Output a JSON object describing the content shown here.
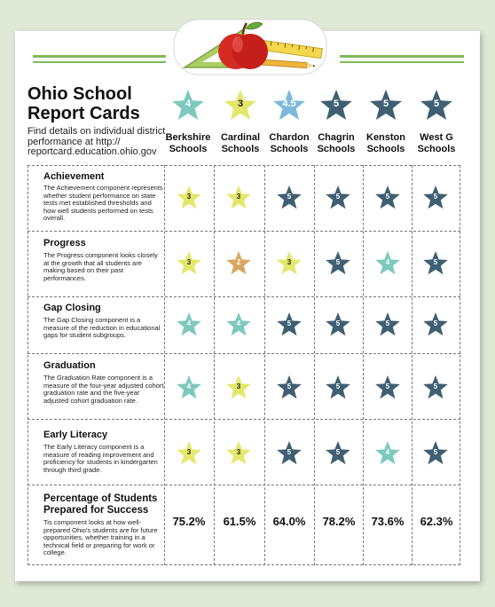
{
  "colors": {
    "yellow": "#e3e86a",
    "orange": "#d9a860",
    "mint": "#7ec9bd",
    "navy": "#3f5f73",
    "lightblue": "#7db9dc",
    "border": "#777777",
    "background": "#dfe9d6",
    "green_stripe": "#7dbb5a"
  },
  "icons": {
    "logo": "apple-ruler-triangle-logo",
    "star": "star-icon"
  },
  "header": {
    "title_line1": "Ohio School",
    "title_line2": "Report Cards",
    "subtitle": "Find details on individual district performance at http:// reportcard.education.ohio.gov"
  },
  "schools": [
    {
      "line1": "Berkshire",
      "line2": "Schools",
      "overall": "4",
      "color": "mint"
    },
    {
      "line1": "Cardinal",
      "line2": "Schools",
      "overall": "3",
      "color": "yellow"
    },
    {
      "line1": "Chardon",
      "line2": "Schools",
      "overall": "4.5",
      "color": "lightblue"
    },
    {
      "line1": "Chagrin",
      "line2": "Schools",
      "overall": "5",
      "color": "navy"
    },
    {
      "line1": "Kenston",
      "line2": "Schools",
      "overall": "5",
      "color": "navy"
    },
    {
      "line1": "West G",
      "line2": "Schools",
      "overall": "5",
      "color": "navy"
    }
  ],
  "components": [
    {
      "title": "Achievement",
      "description": "The Achievement component represents whether student performance on state tests met established thresholds and how well students performed on tests overall.",
      "ratings": [
        {
          "v": "3",
          "c": "yellow"
        },
        {
          "v": "3",
          "c": "yellow"
        },
        {
          "v": "5",
          "c": "navy"
        },
        {
          "v": "5",
          "c": "navy"
        },
        {
          "v": "5",
          "c": "navy"
        },
        {
          "v": "5",
          "c": "navy"
        }
      ]
    },
    {
      "title": "Progress",
      "description": "The Progress component looks closely at the growth that all students are making based on their past performances.",
      "ratings": [
        {
          "v": "3",
          "c": "yellow"
        },
        {
          "v": "2",
          "c": "orange"
        },
        {
          "v": "3",
          "c": "yellow"
        },
        {
          "v": "5",
          "c": "navy"
        },
        {
          "v": "4",
          "c": "mint"
        },
        {
          "v": "5",
          "c": "navy"
        }
      ]
    },
    {
      "title": "Gap Closing",
      "description": "The Gap Closing component is a measure of the reduction in educational gaps for student subgroups.",
      "ratings": [
        {
          "v": "4",
          "c": "mint"
        },
        {
          "v": "4",
          "c": "mint"
        },
        {
          "v": "5",
          "c": "navy"
        },
        {
          "v": "5",
          "c": "navy"
        },
        {
          "v": "5",
          "c": "navy"
        },
        {
          "v": "5",
          "c": "navy"
        }
      ]
    },
    {
      "title": "Graduation",
      "description": "The Graduation Rate component is a measure of the four-year adjusted cohort graduation rate and the five-year adjusted cohort graduation rate.",
      "ratings": [
        {
          "v": "4",
          "c": "mint"
        },
        {
          "v": "3",
          "c": "yellow"
        },
        {
          "v": "5",
          "c": "navy"
        },
        {
          "v": "5",
          "c": "navy"
        },
        {
          "v": "5",
          "c": "navy"
        },
        {
          "v": "5",
          "c": "navy"
        }
      ]
    },
    {
      "title": "Early Literacy",
      "description": "The Early Literacy component is a measure of reading improvement and proficiency for students in kindergarten through third grade.",
      "ratings": [
        {
          "v": "3",
          "c": "yellow"
        },
        {
          "v": "3",
          "c": "yellow"
        },
        {
          "v": "5",
          "c": "navy"
        },
        {
          "v": "5",
          "c": "navy"
        },
        {
          "v": "4",
          "c": "mint"
        },
        {
          "v": "5",
          "c": "navy"
        }
      ]
    }
  ],
  "prepared": {
    "title_line1": "Percentage of Students",
    "title_line2": "Prepared for Success",
    "description": "Tis component looks at how well-prepared Ohio's students are for future opportunities, whether training in a technical field or preparing for work or college.",
    "values": [
      "75.2%",
      "61.5%",
      "64.0%",
      "78.2%",
      "73.6%",
      "62.3%"
    ]
  }
}
